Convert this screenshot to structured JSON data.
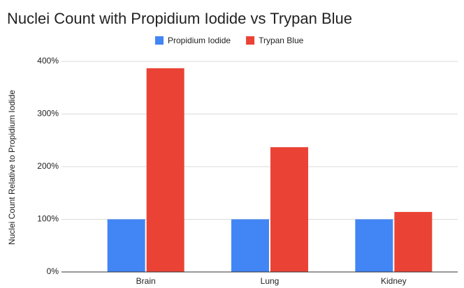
{
  "chart_data": {
    "type": "bar",
    "title": "Nuclei Count with Propidium Iodide vs Trypan Blue",
    "y_label": "Nuclei Count Relative to Propidium Iodide",
    "categories": [
      "Brain",
      "Lung",
      "Kidney"
    ],
    "series": [
      {
        "name": "Propidium Iodide",
        "color": "#4285f4",
        "values": [
          100,
          100,
          100
        ]
      },
      {
        "name": "Trypan Blue",
        "color": "#ea4335",
        "values": [
          387,
          237,
          114
        ]
      }
    ],
    "ylim": [
      0,
      400
    ],
    "yticks": [
      {
        "value": 0,
        "label": "0%"
      },
      {
        "value": 100,
        "label": "100%"
      },
      {
        "value": 200,
        "label": "200%"
      },
      {
        "value": 300,
        "label": "300%"
      },
      {
        "value": 400,
        "label": "400%"
      }
    ],
    "grid": true,
    "legend": "top"
  }
}
